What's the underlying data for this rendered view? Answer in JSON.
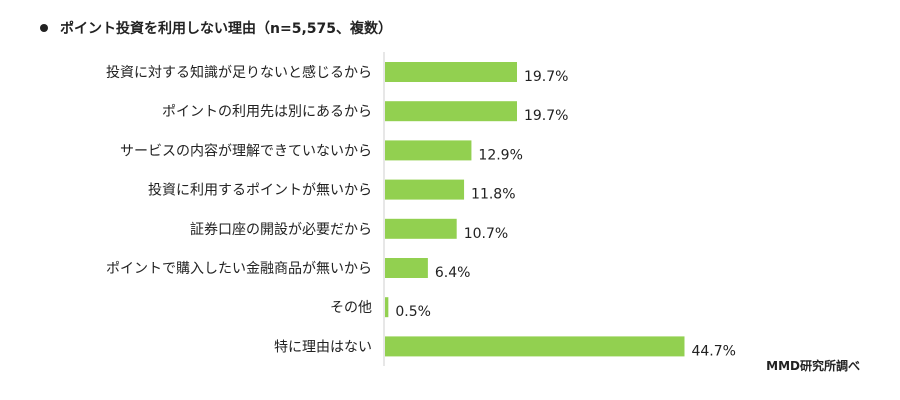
{
  "chart_data": {
    "type": "bar",
    "orientation": "horizontal",
    "title": "ポイント投資を利用しない理由（n=5,575、複数）",
    "categories": [
      "投資に対する知識が足りないと感じるから",
      "ポイントの利用先は別にあるから",
      "サービスの内容が理解できていないから",
      "投資に利用するポイントが無いから",
      "証券口座の開設が必要だから",
      "ポイントで購入したい金融商品が無いから",
      "その他",
      "特に理由はない"
    ],
    "values": [
      19.7,
      19.7,
      12.9,
      11.8,
      10.7,
      6.4,
      0.5,
      44.7
    ],
    "value_labels": [
      "19.7%",
      "19.7%",
      "12.9%",
      "11.8%",
      "10.7%",
      "6.4%",
      "0.5%",
      "44.7%"
    ],
    "unit": "%",
    "xlim": [
      0,
      100
    ],
    "grid": false,
    "bar_color": "#92d050"
  },
  "source": "MMD研究所調べ"
}
